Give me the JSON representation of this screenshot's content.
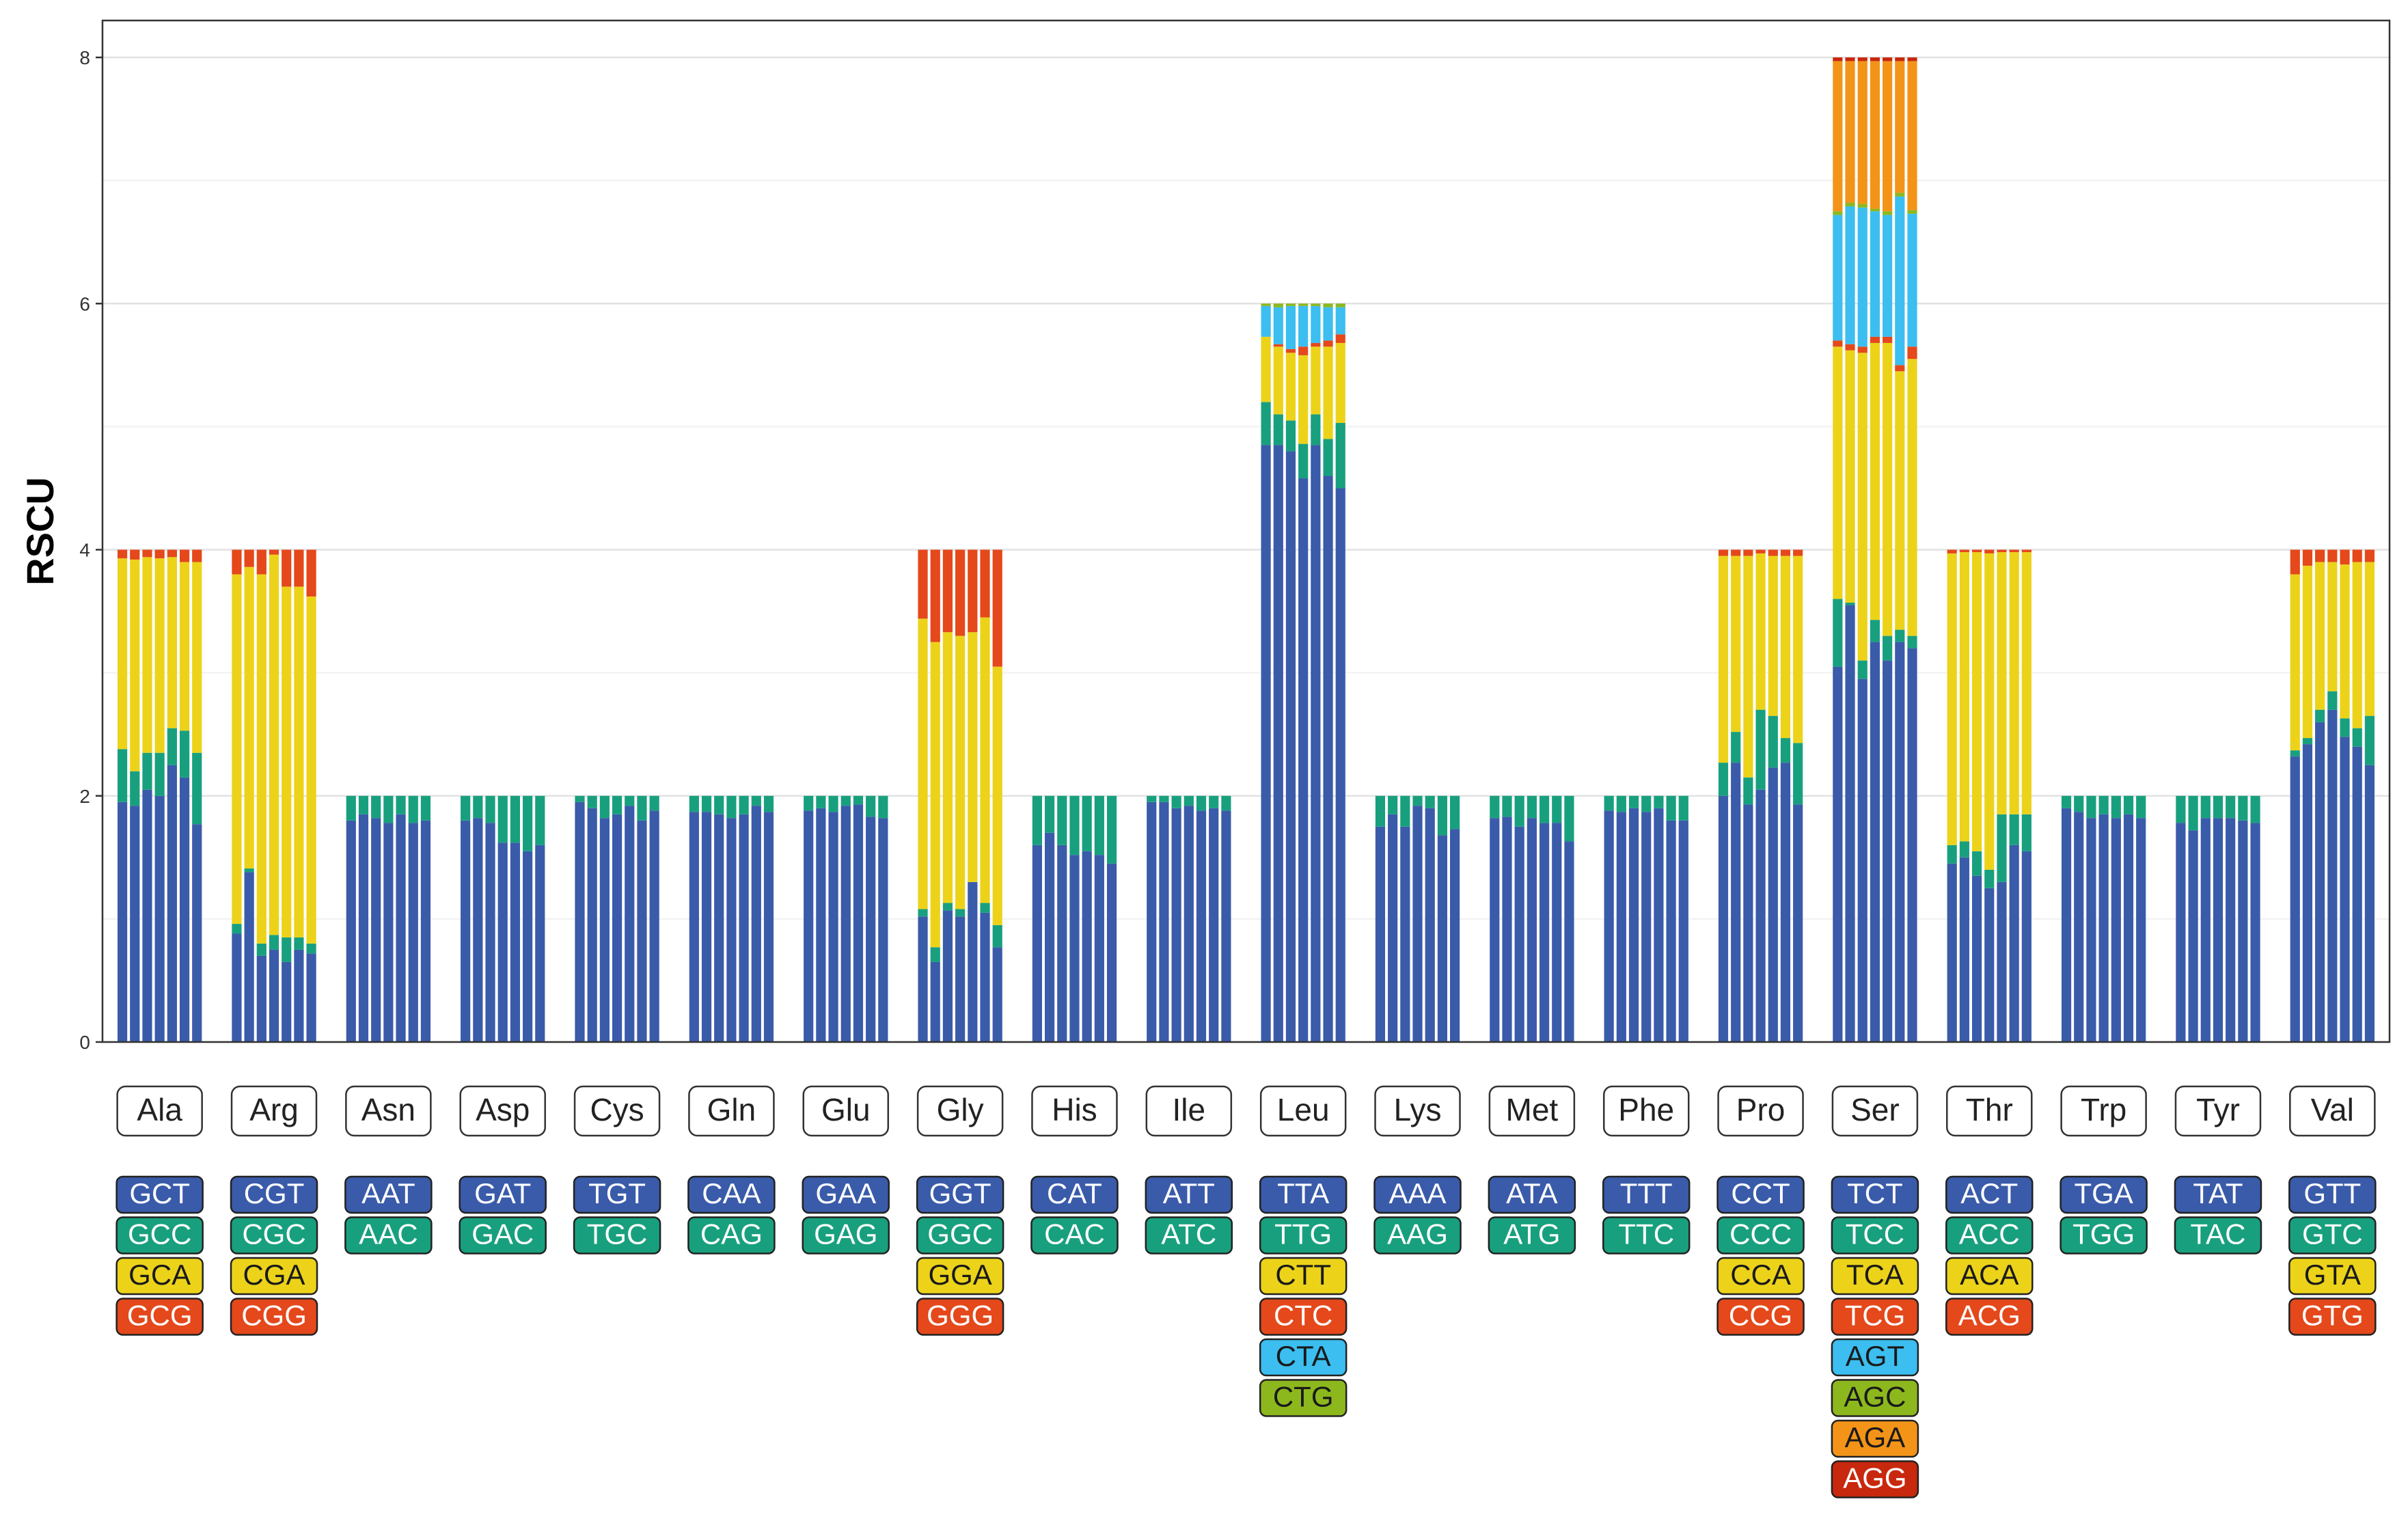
{
  "colors": {
    "c1": "#3a5ba9",
    "c2": "#18a07e",
    "c3": "#ecd31a",
    "c4": "#e4481b",
    "c5": "#3cbef0",
    "c6": "#8cb81e",
    "c7": "#f39419",
    "c8": "#c8280d"
  },
  "chart_data": {
    "type": "bar",
    "stacked": true,
    "ylabel": "RSCU",
    "ylim": [
      0,
      8.3
    ],
    "yticks": [
      0,
      2,
      4,
      6,
      8
    ],
    "grid": true,
    "bars_per_group": 7,
    "groups": [
      {
        "aa": "Ala",
        "codons": [
          "GCT",
          "GCC",
          "GCA",
          "GCG"
        ],
        "stacks": [
          [
            1.95,
            0.43,
            1.55,
            0.07
          ],
          [
            1.92,
            0.28,
            1.72,
            0.08
          ],
          [
            2.05,
            0.3,
            1.59,
            0.06
          ],
          [
            2.0,
            0.35,
            1.58,
            0.07
          ],
          [
            2.25,
            0.3,
            1.39,
            0.06
          ],
          [
            2.15,
            0.38,
            1.37,
            0.1
          ],
          [
            1.77,
            0.58,
            1.55,
            0.1
          ]
        ]
      },
      {
        "aa": "Arg",
        "codons": [
          "CGT",
          "CGC",
          "CGA",
          "CGG"
        ],
        "stacks": [
          [
            0.88,
            0.08,
            2.84,
            0.2
          ],
          [
            1.38,
            0.03,
            2.45,
            0.14
          ],
          [
            0.7,
            0.1,
            3.0,
            0.2
          ],
          [
            0.75,
            0.12,
            3.09,
            0.04
          ],
          [
            0.65,
            0.2,
            2.85,
            0.3
          ],
          [
            0.75,
            0.1,
            2.85,
            0.3
          ],
          [
            0.72,
            0.08,
            2.82,
            0.38
          ]
        ]
      },
      {
        "aa": "Asn",
        "codons": [
          "AAT",
          "AAC"
        ],
        "stacks": [
          [
            1.8,
            0.2
          ],
          [
            1.85,
            0.15
          ],
          [
            1.82,
            0.18
          ],
          [
            1.78,
            0.22
          ],
          [
            1.85,
            0.15
          ],
          [
            1.78,
            0.22
          ],
          [
            1.8,
            0.2
          ]
        ]
      },
      {
        "aa": "Asp",
        "codons": [
          "GAT",
          "GAC"
        ],
        "stacks": [
          [
            1.8,
            0.2
          ],
          [
            1.82,
            0.18
          ],
          [
            1.78,
            0.22
          ],
          [
            1.62,
            0.38
          ],
          [
            1.62,
            0.38
          ],
          [
            1.55,
            0.45
          ],
          [
            1.6,
            0.4
          ]
        ]
      },
      {
        "aa": "Cys",
        "codons": [
          "TGT",
          "TGC"
        ],
        "stacks": [
          [
            1.95,
            0.05
          ],
          [
            1.9,
            0.1
          ],
          [
            1.82,
            0.18
          ],
          [
            1.85,
            0.15
          ],
          [
            1.92,
            0.08
          ],
          [
            1.8,
            0.2
          ],
          [
            1.88,
            0.12
          ]
        ]
      },
      {
        "aa": "Gln",
        "codons": [
          "CAA",
          "CAG"
        ],
        "stacks": [
          [
            1.87,
            0.13
          ],
          [
            1.87,
            0.13
          ],
          [
            1.85,
            0.15
          ],
          [
            1.82,
            0.18
          ],
          [
            1.85,
            0.15
          ],
          [
            1.92,
            0.08
          ],
          [
            1.87,
            0.13
          ]
        ]
      },
      {
        "aa": "Glu",
        "codons": [
          "GAA",
          "GAG"
        ],
        "stacks": [
          [
            1.88,
            0.12
          ],
          [
            1.9,
            0.1
          ],
          [
            1.87,
            0.13
          ],
          [
            1.92,
            0.08
          ],
          [
            1.93,
            0.07
          ],
          [
            1.83,
            0.17
          ],
          [
            1.82,
            0.18
          ]
        ]
      },
      {
        "aa": "Gly",
        "codons": [
          "GGT",
          "GGC",
          "GGA",
          "GGG"
        ],
        "stacks": [
          [
            1.02,
            0.06,
            2.36,
            0.56
          ],
          [
            0.65,
            0.12,
            2.48,
            0.75
          ],
          [
            1.07,
            0.06,
            2.2,
            0.67
          ],
          [
            1.02,
            0.06,
            2.22,
            0.7
          ],
          [
            1.3,
            0.0,
            2.03,
            0.67
          ],
          [
            1.05,
            0.08,
            2.32,
            0.55
          ],
          [
            0.77,
            0.18,
            2.1,
            0.95
          ]
        ]
      },
      {
        "aa": "His",
        "codons": [
          "CAT",
          "CAC"
        ],
        "stacks": [
          [
            1.6,
            0.4
          ],
          [
            1.7,
            0.3
          ],
          [
            1.6,
            0.4
          ],
          [
            1.52,
            0.48
          ],
          [
            1.55,
            0.45
          ],
          [
            1.52,
            0.48
          ],
          [
            1.45,
            0.55
          ]
        ]
      },
      {
        "aa": "Ile",
        "codons": [
          "ATT",
          "ATC"
        ],
        "stacks": [
          [
            1.95,
            0.05
          ],
          [
            1.95,
            0.05
          ],
          [
            1.9,
            0.1
          ],
          [
            1.92,
            0.08
          ],
          [
            1.88,
            0.12
          ],
          [
            1.9,
            0.1
          ],
          [
            1.88,
            0.12
          ]
        ]
      },
      {
        "aa": "Leu",
        "codons": [
          "TTA",
          "TTG",
          "CTT",
          "CTC",
          "CTA",
          "CTG"
        ],
        "stacks": [
          [
            4.85,
            0.35,
            0.53,
            0.0,
            0.25,
            0.02
          ],
          [
            4.85,
            0.25,
            0.55,
            0.02,
            0.3,
            0.03
          ],
          [
            4.8,
            0.25,
            0.55,
            0.03,
            0.35,
            0.02
          ],
          [
            4.58,
            0.28,
            0.72,
            0.07,
            0.33,
            0.02
          ],
          [
            4.85,
            0.25,
            0.55,
            0.03,
            0.3,
            0.02
          ],
          [
            4.6,
            0.3,
            0.75,
            0.05,
            0.27,
            0.03
          ],
          [
            4.5,
            0.53,
            0.65,
            0.07,
            0.22,
            0.03
          ]
        ]
      },
      {
        "aa": "Lys",
        "codons": [
          "AAA",
          "AAG"
        ],
        "stacks": [
          [
            1.75,
            0.25
          ],
          [
            1.85,
            0.15
          ],
          [
            1.75,
            0.25
          ],
          [
            1.92,
            0.08
          ],
          [
            1.9,
            0.1
          ],
          [
            1.68,
            0.32
          ],
          [
            1.73,
            0.27
          ]
        ]
      },
      {
        "aa": "Met",
        "codons": [
          "ATA",
          "ATG"
        ],
        "stacks": [
          [
            1.82,
            0.18
          ],
          [
            1.83,
            0.17
          ],
          [
            1.75,
            0.25
          ],
          [
            1.82,
            0.18
          ],
          [
            1.78,
            0.22
          ],
          [
            1.78,
            0.22
          ],
          [
            1.63,
            0.37
          ]
        ]
      },
      {
        "aa": "Phe",
        "codons": [
          "TTT",
          "TTC"
        ],
        "stacks": [
          [
            1.88,
            0.12
          ],
          [
            1.87,
            0.13
          ],
          [
            1.9,
            0.1
          ],
          [
            1.87,
            0.13
          ],
          [
            1.9,
            0.1
          ],
          [
            1.8,
            0.2
          ],
          [
            1.8,
            0.2
          ]
        ]
      },
      {
        "aa": "Pro",
        "codons": [
          "CCT",
          "CCC",
          "CCA",
          "CCG"
        ],
        "stacks": [
          [
            2.0,
            0.27,
            1.68,
            0.05
          ],
          [
            2.27,
            0.25,
            1.43,
            0.05
          ],
          [
            1.93,
            0.22,
            1.8,
            0.05
          ],
          [
            2.05,
            0.65,
            1.27,
            0.03
          ],
          [
            2.23,
            0.42,
            1.3,
            0.05
          ],
          [
            2.27,
            0.2,
            1.48,
            0.05
          ],
          [
            1.93,
            0.5,
            1.52,
            0.05
          ]
        ]
      },
      {
        "aa": "Ser",
        "codons": [
          "TCT",
          "TCC",
          "TCA",
          "TCG",
          "AGT",
          "AGC",
          "AGA",
          "AGG"
        ],
        "stacks": [
          [
            3.05,
            0.55,
            2.05,
            0.05,
            1.02,
            0.03,
            1.22,
            0.03
          ],
          [
            3.55,
            0.02,
            2.05,
            0.05,
            1.12,
            0.03,
            1.15,
            0.03
          ],
          [
            2.95,
            0.15,
            2.5,
            0.05,
            1.13,
            0.03,
            1.16,
            0.03
          ],
          [
            3.25,
            0.18,
            2.25,
            0.05,
            1.02,
            0.02,
            1.2,
            0.03
          ],
          [
            3.1,
            0.2,
            2.38,
            0.05,
            0.99,
            0.03,
            1.22,
            0.03
          ],
          [
            3.25,
            0.1,
            2.1,
            0.05,
            1.37,
            0.03,
            1.07,
            0.03
          ],
          [
            3.2,
            0.1,
            2.25,
            0.1,
            1.08,
            0.03,
            1.21,
            0.03
          ]
        ]
      },
      {
        "aa": "Thr",
        "codons": [
          "ACT",
          "ACC",
          "ACA",
          "ACG"
        ],
        "stacks": [
          [
            1.45,
            0.15,
            2.37,
            0.03
          ],
          [
            1.5,
            0.13,
            2.35,
            0.02
          ],
          [
            1.35,
            0.2,
            2.43,
            0.02
          ],
          [
            1.25,
            0.15,
            2.57,
            0.03
          ],
          [
            1.3,
            0.55,
            2.13,
            0.02
          ],
          [
            1.6,
            0.25,
            2.13,
            0.02
          ],
          [
            1.55,
            0.3,
            2.13,
            0.02
          ]
        ]
      },
      {
        "aa": "Trp",
        "codons": [
          "TGA",
          "TGG"
        ],
        "stacks": [
          [
            1.9,
            0.1
          ],
          [
            1.87,
            0.13
          ],
          [
            1.82,
            0.18
          ],
          [
            1.85,
            0.15
          ],
          [
            1.82,
            0.18
          ],
          [
            1.85,
            0.15
          ],
          [
            1.82,
            0.18
          ]
        ]
      },
      {
        "aa": "Tyr",
        "codons": [
          "TAT",
          "TAC"
        ],
        "stacks": [
          [
            1.78,
            0.22
          ],
          [
            1.72,
            0.28
          ],
          [
            1.82,
            0.18
          ],
          [
            1.82,
            0.18
          ],
          [
            1.82,
            0.18
          ],
          [
            1.8,
            0.2
          ],
          [
            1.78,
            0.22
          ]
        ]
      },
      {
        "aa": "Val",
        "codons": [
          "GTT",
          "GTC",
          "GTA",
          "GTG"
        ],
        "stacks": [
          [
            2.32,
            0.05,
            1.43,
            0.2
          ],
          [
            2.42,
            0.05,
            1.4,
            0.13
          ],
          [
            2.6,
            0.1,
            1.2,
            0.1
          ],
          [
            2.7,
            0.15,
            1.05,
            0.1
          ],
          [
            2.48,
            0.15,
            1.25,
            0.12
          ],
          [
            2.4,
            0.15,
            1.35,
            0.1
          ],
          [
            2.25,
            0.4,
            1.25,
            0.1
          ]
        ]
      }
    ]
  }
}
